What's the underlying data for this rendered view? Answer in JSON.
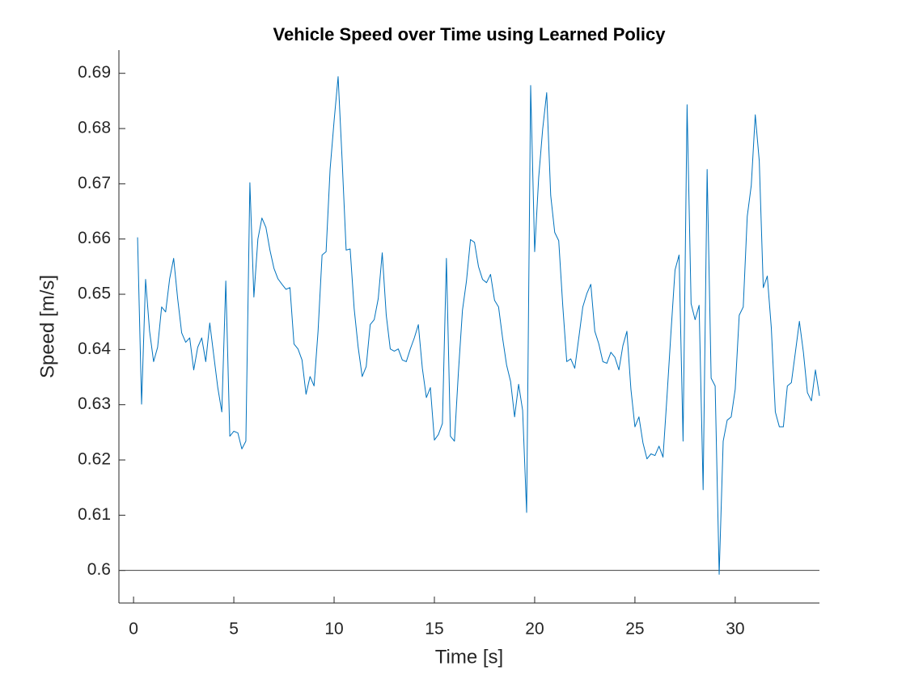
{
  "chart_data": {
    "type": "line",
    "title": "Vehicle Speed over Time using Learned Policy",
    "xlabel": "Time [s]",
    "ylabel": "Speed [m/s]",
    "color": "#0072bd",
    "hline": 0.6,
    "xlim": [
      -0.73,
      34.2
    ],
    "ylim": [
      0.5941,
      0.6942
    ],
    "xticks": [
      0,
      5,
      10,
      15,
      20,
      25,
      30
    ],
    "yticks": [
      0.6,
      0.61,
      0.62,
      0.63,
      0.64,
      0.65,
      0.66,
      0.67,
      0.68,
      0.69
    ],
    "x": [
      0.2,
      0.4,
      0.6,
      0.8,
      1.0,
      1.2,
      1.4,
      1.6,
      1.8,
      2.0,
      2.2,
      2.4,
      2.6,
      2.8,
      3.0,
      3.2,
      3.4,
      3.6,
      3.8,
      4.0,
      4.2,
      4.4,
      4.6,
      4.8,
      5.0,
      5.2,
      5.4,
      5.6,
      5.8,
      6.0,
      6.2,
      6.4,
      6.6,
      6.8,
      7.0,
      7.2,
      7.4,
      7.6,
      7.8,
      8.0,
      8.2,
      8.4,
      8.6,
      8.8,
      9.0,
      9.2,
      9.4,
      9.6,
      9.8,
      10.0,
      10.2,
      10.4,
      10.6,
      10.8,
      11.0,
      11.2,
      11.4,
      11.6,
      11.8,
      12.0,
      12.2,
      12.4,
      12.6,
      12.8,
      13.0,
      13.2,
      13.4,
      13.6,
      13.8,
      14.0,
      14.2,
      14.4,
      14.6,
      14.8,
      15.0,
      15.2,
      15.4,
      15.6,
      15.8,
      16.0,
      16.2,
      16.4,
      16.6,
      16.8,
      17.0,
      17.2,
      17.4,
      17.6,
      17.8,
      18.0,
      18.2,
      18.4,
      18.6,
      18.8,
      19.0,
      19.2,
      19.4,
      19.6,
      19.8,
      20.0,
      20.2,
      20.4,
      20.6,
      20.8,
      21.0,
      21.2,
      21.4,
      21.6,
      21.8,
      22.0,
      22.2,
      22.4,
      22.6,
      22.8,
      23.0,
      23.2,
      23.4,
      23.6,
      23.8,
      24.0,
      24.2,
      24.4,
      24.6,
      24.8,
      25.0,
      25.2,
      25.4,
      25.6,
      25.8,
      26.0,
      26.2,
      26.4,
      26.6,
      26.8,
      27.0,
      27.2,
      27.4,
      27.6,
      27.8,
      28.0,
      28.2,
      28.4,
      28.6,
      28.8,
      29.0,
      29.2,
      29.4,
      29.6,
      29.8,
      30.0,
      30.2,
      30.4,
      30.6,
      30.8,
      31.0,
      31.2,
      31.4,
      31.6,
      31.8,
      32.0,
      32.2,
      32.4,
      32.6,
      32.8,
      33.0,
      33.2,
      33.4,
      33.6,
      33.8,
      34.0,
      34.2
    ],
    "values": [
      0.6603,
      0.6301,
      0.6527,
      0.6433,
      0.6378,
      0.6404,
      0.6477,
      0.6468,
      0.6528,
      0.6565,
      0.6492,
      0.643,
      0.6413,
      0.6421,
      0.6363,
      0.6404,
      0.6421,
      0.6378,
      0.6448,
      0.6389,
      0.6331,
      0.6287,
      0.6524,
      0.6243,
      0.6252,
      0.6249,
      0.622,
      0.6234,
      0.6702,
      0.6495,
      0.66,
      0.6638,
      0.6621,
      0.658,
      0.6547,
      0.6528,
      0.6518,
      0.6509,
      0.6512,
      0.641,
      0.6401,
      0.6381,
      0.6319,
      0.6351,
      0.6334,
      0.6433,
      0.6571,
      0.6577,
      0.6726,
      0.6814,
      0.6894,
      0.6743,
      0.658,
      0.6582,
      0.6474,
      0.6404,
      0.6351,
      0.6369,
      0.6445,
      0.6454,
      0.6492,
      0.6575,
      0.6462,
      0.6401,
      0.6397,
      0.6401,
      0.6381,
      0.6378,
      0.6401,
      0.6421,
      0.6445,
      0.6366,
      0.6313,
      0.6331,
      0.6236,
      0.6246,
      0.6266,
      0.6565,
      0.6243,
      0.6234,
      0.636,
      0.6471,
      0.6524,
      0.6599,
      0.6594,
      0.655,
      0.6527,
      0.6521,
      0.6536,
      0.6489,
      0.6477,
      0.6421,
      0.6372,
      0.6342,
      0.6278,
      0.6337,
      0.629,
      0.6105,
      0.6878,
      0.6577,
      0.6711,
      0.6799,
      0.6865,
      0.6679,
      0.6612,
      0.6597,
      0.648,
      0.6378,
      0.6383,
      0.6366,
      0.6421,
      0.6477,
      0.6501,
      0.6518,
      0.6433,
      0.641,
      0.6378,
      0.6375,
      0.6395,
      0.6386,
      0.6363,
      0.6407,
      0.6433,
      0.6328,
      0.626,
      0.6278,
      0.6231,
      0.6202,
      0.6211,
      0.6208,
      0.6225,
      0.6205,
      0.6316,
      0.6433,
      0.6544,
      0.6571,
      0.6234,
      0.6843,
      0.6483,
      0.6454,
      0.648,
      0.6146,
      0.6726,
      0.6348,
      0.6334,
      0.5993,
      0.6234,
      0.6272,
      0.6278,
      0.6328,
      0.6462,
      0.6477,
      0.6641,
      0.6697,
      0.6825,
      0.6741,
      0.6512,
      0.6533,
      0.6439,
      0.6287,
      0.626,
      0.626,
      0.6334,
      0.634,
      0.6395,
      0.6451,
      0.6395,
      0.6322,
      0.6307,
      0.6363,
      0.6316
    ]
  }
}
